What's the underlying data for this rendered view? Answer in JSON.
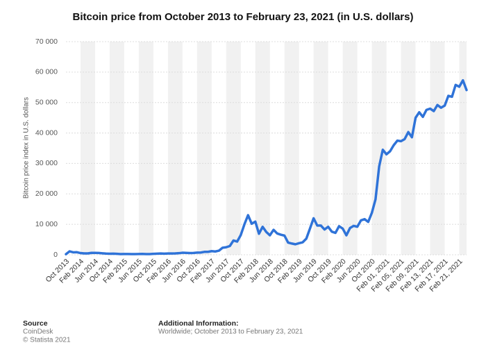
{
  "chart_data": {
    "type": "line",
    "title": "Bitcoin price from October 2013 to February 23, 2021 (in U.S. dollars)",
    "y_label": "Bitcoin price index in U.S. dollars",
    "categories": [
      "Oct 2013",
      null,
      null,
      null,
      "Feb 2014",
      null,
      null,
      null,
      "Jun 2014",
      null,
      null,
      null,
      "Oct 2014",
      null,
      null,
      null,
      "Feb 2015",
      null,
      null,
      null,
      "Jun 2015",
      null,
      null,
      null,
      "Oct 2015",
      null,
      null,
      null,
      "Feb 2016",
      null,
      null,
      null,
      "Jun 2016",
      null,
      null,
      null,
      "Oct 2016",
      null,
      null,
      null,
      "Feb 2017",
      null,
      null,
      null,
      "Jun 2017",
      null,
      null,
      null,
      "Oct 2017",
      null,
      null,
      null,
      "Feb 2018",
      null,
      null,
      null,
      "Jun 2018",
      null,
      null,
      null,
      "Oct 2018",
      null,
      null,
      null,
      "Feb 2019",
      null,
      null,
      null,
      "Jun 2019",
      null,
      null,
      null,
      "Oct 2019",
      null,
      null,
      null,
      "Feb 2020",
      null,
      null,
      null,
      "Jun 2020",
      null,
      null,
      null,
      "Oct 2020",
      null,
      null,
      null,
      "Feb 01, 2021",
      null,
      null,
      null,
      "Feb 05, 2021",
      null,
      null,
      null,
      "Feb 09, 2021",
      null,
      null,
      null,
      "Feb 13, 2021",
      null,
      null,
      null,
      "Feb 17, 2021",
      null,
      null,
      null,
      "Feb 21, 2021",
      null,
      null
    ],
    "series": [
      {
        "color": "#2f73d8",
        "values": [
          200,
          1130,
          800,
          850,
          560,
          460,
          450,
          630,
          640,
          590,
          480,
          390,
          340,
          380,
          320,
          220,
          255,
          245,
          235,
          230,
          260,
          285,
          230,
          235,
          315,
          380,
          430,
          370,
          435,
          415,
          450,
          530,
          670,
          625,
          575,
          610,
          700,
          745,
          960,
          970,
          1190,
          1080,
          1350,
          2300,
          2480,
          2880,
          4700,
          4340,
          6470,
          10000,
          13000,
          10200,
          10900,
          6900,
          9200,
          7500,
          6400,
          8200,
          7000,
          6600,
          6300,
          4000,
          3700,
          3450,
          3800,
          4100,
          5300,
          8600,
          12000,
          9600,
          9600,
          8300,
          9200,
          7600,
          7200,
          9400,
          8600,
          6400,
          8800,
          9500,
          9200,
          11300,
          11700,
          10800,
          13800,
          18200,
          29000,
          34500,
          33000,
          34000,
          36000,
          37500,
          37300,
          38000,
          40300,
          38600,
          45000,
          46800,
          45300,
          47600,
          48000,
          47200,
          49200,
          48300,
          49000,
          52200,
          51900,
          55800,
          55200,
          57300,
          54100
        ]
      }
    ],
    "ylim": [
      0,
      70000
    ],
    "yticks": [
      0,
      {
        "value": 10000,
        "label": "10 000"
      },
      {
        "value": 20000,
        "label": "20 000"
      },
      {
        "value": 30000,
        "label": "30 000"
      },
      {
        "value": 40000,
        "label": "40 000"
      },
      {
        "value": 50000,
        "label": "50 000"
      },
      {
        "value": 60000,
        "label": "60 000"
      },
      {
        "value": 70000,
        "label": "70 000"
      }
    ],
    "grid": true
  },
  "footer": {
    "source_heading": "Source",
    "source": "CoinDesk",
    "copyright": "© Statista 2021",
    "info_heading": "Additional Information:",
    "info": "Worldwide; October 2013 to February 23, 2021"
  }
}
